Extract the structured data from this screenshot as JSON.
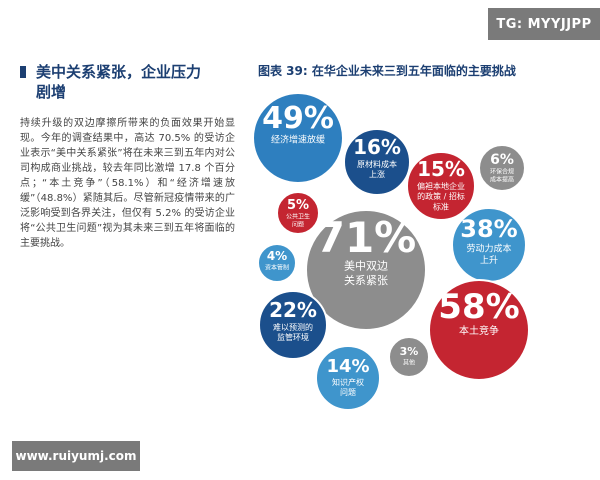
{
  "watermarks": {
    "top": "TG: MYYJJPP",
    "bottom": "www.ruiyumj.com"
  },
  "section": {
    "heading_line1": "美中关系紧张，企业压力",
    "heading_line2": "剧增",
    "body": "持续升级的双边摩擦所带来的负面效果开始显现。今年的调查结果中，高达 70.5% 的受访企业表示“美中关系紧张”将在未来三到五年内对公司构成商业挑战，较去年同比激增 17.8 个百分点；“本土竞争”（58.1%）和“经济增速放缓”（48.8%）紧随其后。尽管新冠疫情带来的广泛影响受到各界关注，但仅有 5.2% 的受访企业将“公共卫生问题”视为其未来三到五年将面临的主要挑战。"
  },
  "chart_data": {
    "type": "bubble",
    "title": "图表 39: 在华企业未来三到五年面临的主要挑战",
    "unit": "%",
    "colors": {
      "blue": "#2e7fbf",
      "navy": "#1b4f8c",
      "red": "#c42531",
      "gray": "#8d8d8d",
      "lightblue": "#3f95cc"
    },
    "categories": [
      "美中双边关系紧张",
      "本土竞争",
      "经济增速放缓",
      "劳动力成本上升",
      "原材料成本上涨",
      "难以预测的监管环境",
      "偏袒本地企业的政策 / 招标标准",
      "知识产权问题",
      "环保合规成本提高",
      "公共卫生问题",
      "资本管制",
      "其他"
    ],
    "values": [
      71,
      58,
      49,
      38,
      16,
      22,
      15,
      14,
      6,
      5,
      4,
      3
    ],
    "bubbles": [
      {
        "value_label": "71%",
        "name_lines": [
          "美中双边",
          "关系紧张"
        ],
        "color": "gray"
      },
      {
        "value_label": "58%",
        "name_lines": [
          "本土竞争"
        ],
        "color": "red"
      },
      {
        "value_label": "49%",
        "name_lines": [
          "经济增速放缓"
        ],
        "color": "blue"
      },
      {
        "value_label": "38%",
        "name_lines": [
          "劳动力成本",
          "上升"
        ],
        "color": "lightblue"
      },
      {
        "value_label": "16%",
        "name_lines": [
          "原材料成本",
          "上涨"
        ],
        "color": "navy"
      },
      {
        "value_label": "22%",
        "name_lines": [
          "难以预测的",
          "监管环境"
        ],
        "color": "navy"
      },
      {
        "value_label": "15%",
        "name_lines": [
          "偏袒本地企业",
          "的政策 / 招标",
          "标准"
        ],
        "color": "red"
      },
      {
        "value_label": "14%",
        "name_lines": [
          "知识产权",
          "问题"
        ],
        "color": "lightblue"
      },
      {
        "value_label": "6%",
        "name_lines": [
          "环保合规",
          "成本提高"
        ],
        "color": "gray"
      },
      {
        "value_label": "5%",
        "name_lines": [
          "公共卫生",
          "问题"
        ],
        "color": "red"
      },
      {
        "value_label": "4%",
        "name_lines": [
          "资本管制"
        ],
        "color": "lightblue"
      },
      {
        "value_label": "3%",
        "name_lines": [
          "其他"
        ],
        "color": "gray"
      }
    ]
  }
}
